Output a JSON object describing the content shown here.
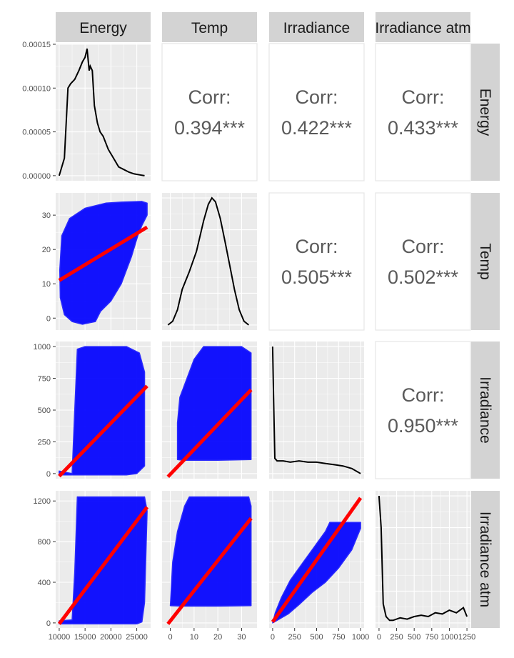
{
  "chart_data": {
    "type": "scatter-matrix",
    "variables": [
      "Energy",
      "Temp",
      "Irradiance",
      "Irradiance atm"
    ],
    "ranges": {
      "Energy": [
        10000,
        27000
      ],
      "Temp": [
        -2,
        35
      ],
      "Irradiance": [
        0,
        1000
      ],
      "Irradiance atm": [
        0,
        1250
      ]
    },
    "ticks": {
      "Energy": [
        "10000",
        "15000",
        "20000",
        "25000"
      ],
      "Temp": [
        "0",
        "10",
        "20",
        "30"
      ],
      "Irradiance": [
        "0",
        "250",
        "500",
        "750",
        "1000"
      ],
      "Irradiance atm": [
        "0",
        "250",
        "500",
        "750",
        "1000",
        "1250"
      ]
    },
    "y_ticks": {
      "Energy_density": [
        "0.00000",
        "0.00005",
        "0.00010",
        "0.00015"
      ],
      "Temp": [
        "0",
        "10",
        "20",
        "30"
      ],
      "Irradiance": [
        "0",
        "250",
        "500",
        "750",
        "1000"
      ],
      "Irradiance atm": [
        "0",
        "400",
        "800",
        "1200"
      ]
    },
    "correlations": [
      {
        "row": "Energy",
        "col": "Temp",
        "label": "Corr:",
        "value": "0.394***"
      },
      {
        "row": "Energy",
        "col": "Irradiance",
        "label": "Corr:",
        "value": "0.422***"
      },
      {
        "row": "Energy",
        "col": "Irradiance atm",
        "label": "Corr:",
        "value": "0.433***"
      },
      {
        "row": "Temp",
        "col": "Irradiance",
        "label": "Corr:",
        "value": "0.505***"
      },
      {
        "row": "Temp",
        "col": "Irradiance atm",
        "label": "Corr:",
        "value": "0.502***"
      },
      {
        "row": "Irradiance",
        "col": "Irradiance atm",
        "label": "Corr:",
        "value": "0.950***"
      }
    ],
    "densities": {
      "Energy": {
        "x": [
          10000,
          11000,
          11700,
          12200,
          13000,
          13800,
          14500,
          15000,
          15400,
          15800,
          16000,
          16400,
          16800,
          17400,
          17900,
          18500,
          19500,
          20500,
          21500,
          22500,
          23500,
          24500,
          25500,
          26500
        ],
        "y": [
          0.0,
          2e-05,
          0.0001,
          0.000105,
          0.00011,
          0.00012,
          0.00013,
          0.000135,
          0.000145,
          0.00012,
          0.000125,
          0.00012,
          8e-05,
          6e-05,
          5e-05,
          4.5e-05,
          3e-05,
          2e-05,
          1e-05,
          7e-06,
          4e-06,
          2e-06,
          1e-06,
          0.0
        ]
      },
      "Temp": {
        "x": [
          -1,
          1,
          3,
          5,
          8,
          11,
          14,
          16,
          17.5,
          19,
          21,
          23,
          25,
          27,
          29,
          31,
          33
        ],
        "y": [
          0.0,
          0.03,
          0.12,
          0.28,
          0.42,
          0.58,
          0.82,
          0.95,
          1.0,
          0.97,
          0.84,
          0.66,
          0.47,
          0.28,
          0.12,
          0.03,
          0.0
        ],
        "max_label": ""
      },
      "Irradiance": {
        "x": [
          0,
          10,
          25,
          50,
          80,
          120,
          200,
          300,
          400,
          500,
          600,
          700,
          800,
          900,
          1000
        ],
        "y": [
          1.0,
          0.6,
          0.12,
          0.1,
          0.1,
          0.1,
          0.09,
          0.1,
          0.09,
          0.09,
          0.08,
          0.07,
          0.06,
          0.04,
          0.0
        ]
      },
      "Irradiance atm": {
        "x": [
          0,
          30,
          60,
          100,
          150,
          200,
          300,
          400,
          500,
          600,
          700,
          800,
          900,
          1000,
          1100,
          1200,
          1250
        ],
        "y": [
          1.0,
          0.75,
          0.15,
          0.05,
          0.02,
          0.02,
          0.04,
          0.03,
          0.05,
          0.06,
          0.05,
          0.08,
          0.07,
          0.1,
          0.08,
          0.12,
          0.05
        ]
      }
    },
    "fit_lines": [
      {
        "row": "Temp",
        "col": "Energy",
        "x": [
          10000,
          27000
        ],
        "y": [
          11,
          26.5
        ]
      },
      {
        "row": "Irradiance",
        "col": "Energy",
        "x": [
          10000,
          27000
        ],
        "y": [
          -20,
          690
        ]
      },
      {
        "row": "Irradiance",
        "col": "Temp",
        "x": [
          -1,
          34
        ],
        "y": [
          -25,
          660
        ]
      },
      {
        "row": "Irradiance atm",
        "col": "Energy",
        "x": [
          10000,
          27000
        ],
        "y": [
          -10,
          1140
        ]
      },
      {
        "row": "Irradiance atm",
        "col": "Temp",
        "x": [
          -1,
          34
        ],
        "y": [
          -10,
          1030
        ]
      },
      {
        "row": "Irradiance atm",
        "col": "Irradiance",
        "x": [
          0,
          1000
        ],
        "y": [
          10,
          1230
        ]
      }
    ],
    "scatter_regions": [
      {
        "row": "Temp",
        "col": "Energy",
        "points": [
          [
            10100,
            14
          ],
          [
            10500,
            24
          ],
          [
            12000,
            29
          ],
          [
            15000,
            32
          ],
          [
            19000,
            33.5
          ],
          [
            22000,
            33.8
          ],
          [
            26000,
            34
          ],
          [
            27000,
            33.5
          ],
          [
            27000,
            30
          ],
          [
            26000,
            27
          ],
          [
            25200,
            24
          ],
          [
            24000,
            18
          ],
          [
            22000,
            10
          ],
          [
            20000,
            5
          ],
          [
            18000,
            2
          ],
          [
            17000,
            -1
          ],
          [
            14500,
            -1.8
          ],
          [
            12500,
            -1
          ],
          [
            11000,
            1
          ],
          [
            10200,
            6
          ]
        ]
      },
      {
        "row": "Irradiance",
        "col": "Energy",
        "points": [
          [
            12500,
            0
          ],
          [
            12800,
            300
          ],
          [
            13500,
            980
          ],
          [
            15000,
            1000
          ],
          [
            23000,
            1000
          ],
          [
            25500,
            950
          ],
          [
            26500,
            800
          ],
          [
            26500,
            60
          ],
          [
            25000,
            0
          ],
          [
            23000,
            -10
          ],
          [
            15000,
            -10
          ],
          [
            10000,
            -10
          ],
          [
            10000,
            20
          ]
        ]
      },
      {
        "row": "Irradiance",
        "col": "Temp",
        "points": [
          [
            3,
            110
          ],
          [
            3,
            400
          ],
          [
            4,
            600
          ],
          [
            6,
            700
          ],
          [
            10,
            900
          ],
          [
            14,
            1000
          ],
          [
            30,
            1000
          ],
          [
            34,
            950
          ],
          [
            34,
            110
          ],
          [
            20,
            105
          ],
          [
            5,
            105
          ]
        ]
      },
      {
        "row": "Irradiance atm",
        "col": "Energy",
        "points": [
          [
            10000,
            -10
          ],
          [
            10000,
            20
          ],
          [
            12500,
            30
          ],
          [
            13000,
            500
          ],
          [
            13500,
            1240
          ],
          [
            26500,
            1240
          ],
          [
            27000,
            1100
          ],
          [
            26500,
            200
          ],
          [
            26000,
            10
          ],
          [
            25000,
            -10
          ],
          [
            15000,
            -10
          ]
        ]
      },
      {
        "row": "Irradiance atm",
        "col": "Temp",
        "points": [
          [
            0,
            170
          ],
          [
            1,
            600
          ],
          [
            3,
            900
          ],
          [
            6,
            1150
          ],
          [
            8,
            1240
          ],
          [
            33,
            1240
          ],
          [
            34,
            1150
          ],
          [
            34,
            170
          ],
          [
            20,
            165
          ],
          [
            5,
            165
          ]
        ]
      },
      {
        "row": "Irradiance atm",
        "col": "Irradiance",
        "points": [
          [
            0,
            0
          ],
          [
            30,
            100
          ],
          [
            100,
            250
          ],
          [
            200,
            420
          ],
          [
            350,
            600
          ],
          [
            500,
            780
          ],
          [
            600,
            900
          ],
          [
            650,
            990
          ],
          [
            1000,
            990
          ],
          [
            1000,
            930
          ],
          [
            900,
            720
          ],
          [
            750,
            540
          ],
          [
            600,
            400
          ],
          [
            450,
            300
          ],
          [
            300,
            180
          ],
          [
            180,
            90
          ],
          [
            80,
            40
          ],
          [
            20,
            10
          ]
        ]
      }
    ]
  }
}
